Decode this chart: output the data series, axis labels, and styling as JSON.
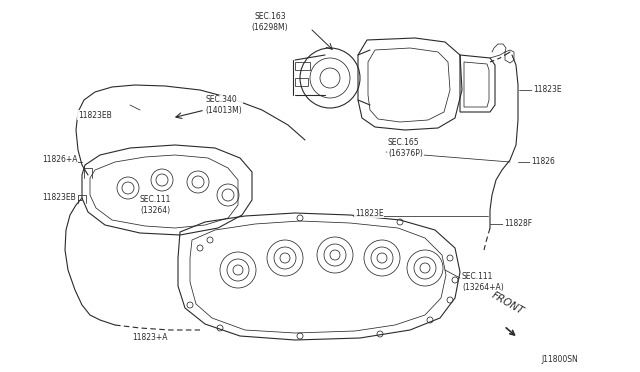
{
  "bg_color": "#ffffff",
  "line_color": "#2a2a2a",
  "fig_width": 6.4,
  "fig_height": 3.72,
  "dpi": 100,
  "diagram_code": "J11800SN",
  "labels": {
    "sec163": "SEC.163\n(16298M)",
    "sec340": "SEC.340\n(14013M)",
    "sec165": "SEC.165\n(16376P)",
    "sec111a": "SEC.111\n(13264)",
    "sec111b": "SEC.111\n(13264+A)",
    "l11823EB_1": "11823EB",
    "l11823EB_2": "11823EB",
    "l11826A": "11826+A",
    "l11823E_1": "11823E",
    "l11826": "11826",
    "l11823E_2": "11823E",
    "l11828F": "11828F",
    "l11823A": "11823+A",
    "front": "FRONT"
  },
  "lw_thick": 1.1,
  "lw_med": 0.8,
  "lw_thin": 0.55,
  "fs_label": 5.8,
  "fs_code": 5.5
}
